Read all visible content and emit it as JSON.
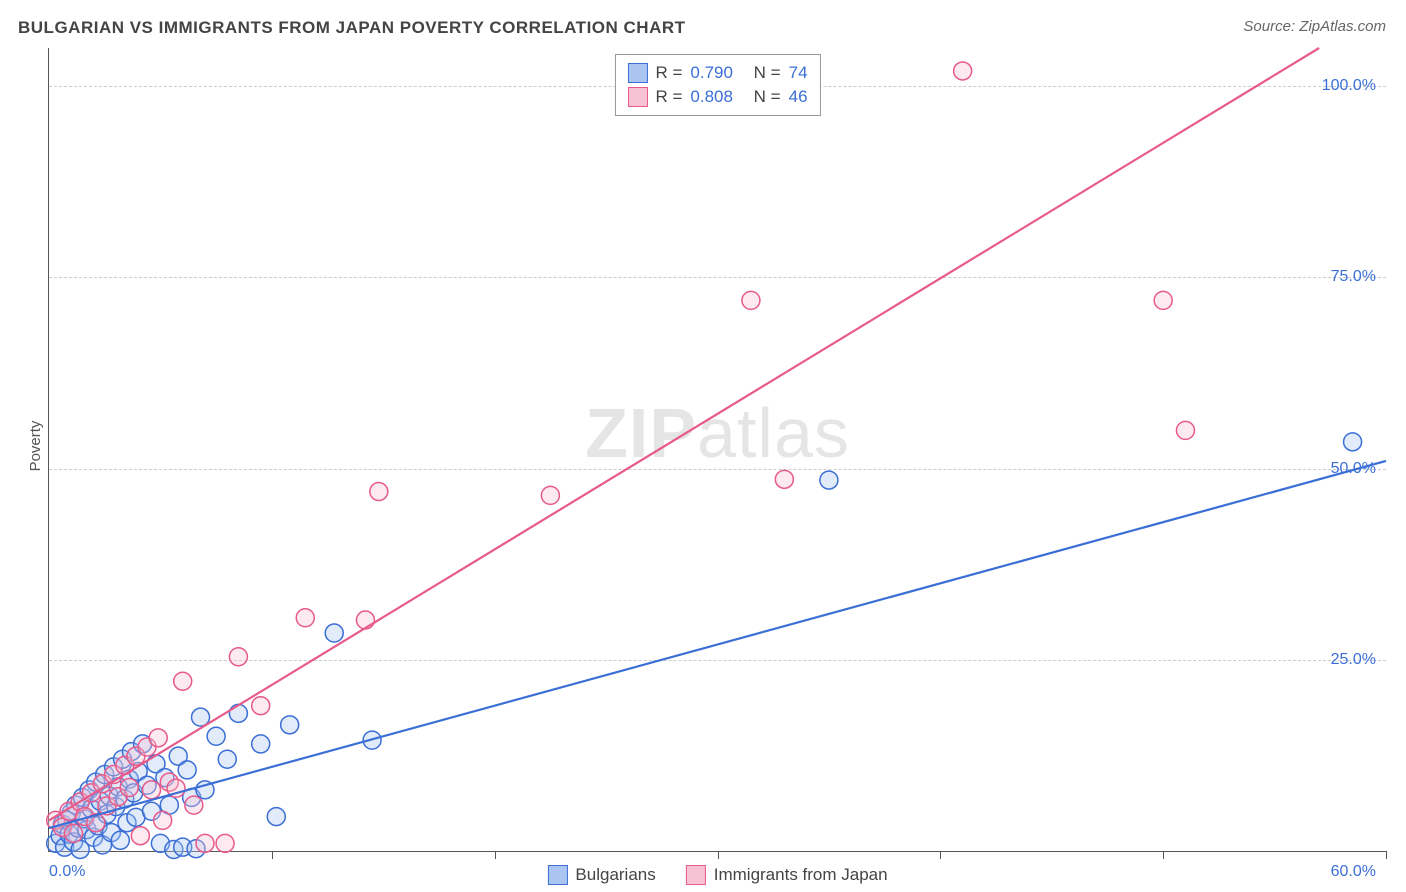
{
  "title": "BULGARIAN VS IMMIGRANTS FROM JAPAN POVERTY CORRELATION CHART",
  "source_label": "Source:",
  "source_name": "ZipAtlas.com",
  "y_axis_label": "Poverty",
  "watermark_zip": "ZIP",
  "watermark_atlas": "atlas",
  "chart": {
    "type": "scatter",
    "xlim": [
      0,
      60
    ],
    "ylim": [
      0,
      105
    ],
    "x_ticks": [
      0,
      10,
      20,
      30,
      40,
      50,
      60
    ],
    "x_tick_labels_shown": {
      "start": "0.0%",
      "end": "60.0%"
    },
    "y_ticks": [
      25,
      50,
      75,
      100
    ],
    "y_tick_labels": [
      "25.0%",
      "50.0%",
      "75.0%",
      "100.0%"
    ],
    "grid_color": "#cccccc",
    "axis_color": "#555555",
    "background_color": "#ffffff",
    "tick_label_color": "#3b6fd6",
    "tick_label_fontsize": 16,
    "title_fontsize": 17,
    "title_color": "#444444",
    "marker_radius": 9,
    "marker_fill_opacity": 0.35,
    "marker_stroke_width": 1.5,
    "line_width": 2.2,
    "series": [
      {
        "name": "Bulgarians",
        "color_stroke": "#3b6fd6",
        "color_fill": "#a9c5f0",
        "R": "0.790",
        "N": "74",
        "trend": {
          "x1": 0,
          "y1": 3,
          "x2": 60,
          "y2": 51
        },
        "points": [
          [
            0.3,
            1
          ],
          [
            0.5,
            2
          ],
          [
            0.6,
            3.5
          ],
          [
            0.7,
            0.5
          ],
          [
            0.8,
            4
          ],
          [
            0.9,
            2.2
          ],
          [
            1.0,
            5
          ],
          [
            1.1,
            1.2
          ],
          [
            1.2,
            6
          ],
          [
            1.3,
            3
          ],
          [
            1.4,
            0.2
          ],
          [
            1.5,
            7
          ],
          [
            1.6,
            4.2
          ],
          [
            1.7,
            2.8
          ],
          [
            1.8,
            8
          ],
          [
            1.9,
            5.5
          ],
          [
            2.0,
            1.8
          ],
          [
            2.1,
            9
          ],
          [
            2.2,
            3.3
          ],
          [
            2.3,
            6.5
          ],
          [
            2.4,
            0.8
          ],
          [
            2.5,
            10
          ],
          [
            2.6,
            4.8
          ],
          [
            2.7,
            7.2
          ],
          [
            2.8,
            2.4
          ],
          [
            2.9,
            11
          ],
          [
            3.0,
            5.8
          ],
          [
            3.1,
            8.4
          ],
          [
            3.2,
            1.4
          ],
          [
            3.3,
            12
          ],
          [
            3.4,
            6.8
          ],
          [
            3.5,
            3.7
          ],
          [
            3.6,
            9.4
          ],
          [
            3.7,
            13
          ],
          [
            3.8,
            7.6
          ],
          [
            3.9,
            4.4
          ],
          [
            4.0,
            10.4
          ],
          [
            4.2,
            14
          ],
          [
            4.4,
            8.6
          ],
          [
            4.6,
            5.2
          ],
          [
            4.8,
            11.4
          ],
          [
            5.0,
            1
          ],
          [
            5.2,
            9.6
          ],
          [
            5.4,
            6.0
          ],
          [
            5.6,
            0.2
          ],
          [
            5.8,
            12.4
          ],
          [
            6.0,
            0.5
          ],
          [
            6.2,
            10.6
          ],
          [
            6.4,
            7
          ],
          [
            6.6,
            0.3
          ],
          [
            6.8,
            17.5
          ],
          [
            7.0,
            8
          ],
          [
            7.5,
            15
          ],
          [
            8.0,
            12
          ],
          [
            8.5,
            18
          ],
          [
            9.5,
            14
          ],
          [
            10.2,
            4.5
          ],
          [
            10.8,
            16.5
          ],
          [
            12.8,
            28.5
          ],
          [
            14.5,
            14.5
          ],
          [
            35,
            48.5
          ],
          [
            58.5,
            53.5
          ]
        ]
      },
      {
        "name": "Immigrants from Japan",
        "color_stroke": "#e85a8a",
        "color_fill": "#f6c2d4",
        "R": "0.808",
        "N": "46",
        "trend": {
          "x1": 0,
          "y1": 4,
          "x2": 57,
          "y2": 105
        },
        "points": [
          [
            0.3,
            4
          ],
          [
            0.6,
            3.1
          ],
          [
            0.9,
            5.2
          ],
          [
            1.1,
            2.3
          ],
          [
            1.4,
            6.4
          ],
          [
            1.6,
            4.5
          ],
          [
            1.9,
            7.6
          ],
          [
            2.1,
            3.7
          ],
          [
            2.4,
            8.8
          ],
          [
            2.6,
            5.9
          ],
          [
            2.9,
            10.0
          ],
          [
            3.1,
            7.1
          ],
          [
            3.4,
            11.2
          ],
          [
            3.6,
            8.3
          ],
          [
            3.9,
            12.4
          ],
          [
            4.1,
            2
          ],
          [
            4.4,
            13.6
          ],
          [
            4.6,
            8
          ],
          [
            4.9,
            14.8
          ],
          [
            5.1,
            4
          ],
          [
            5.4,
            9
          ],
          [
            5.7,
            8.2
          ],
          [
            6.0,
            22.2
          ],
          [
            6.5,
            6
          ],
          [
            7.0,
            1
          ],
          [
            7.9,
            1
          ],
          [
            8.5,
            25.4
          ],
          [
            9.5,
            19
          ],
          [
            11.5,
            30.5
          ],
          [
            14.2,
            30.2
          ],
          [
            14.8,
            47
          ],
          [
            22.5,
            46.5
          ],
          [
            31.5,
            72
          ],
          [
            33,
            48.6
          ],
          [
            41,
            102
          ],
          [
            50,
            72
          ],
          [
            51,
            55
          ]
        ]
      }
    ]
  },
  "legend_top": {
    "r_label": "R =",
    "n_label": "N ="
  },
  "legend_bottom": {
    "items": [
      "Bulgarians",
      "Immigrants from Japan"
    ]
  }
}
